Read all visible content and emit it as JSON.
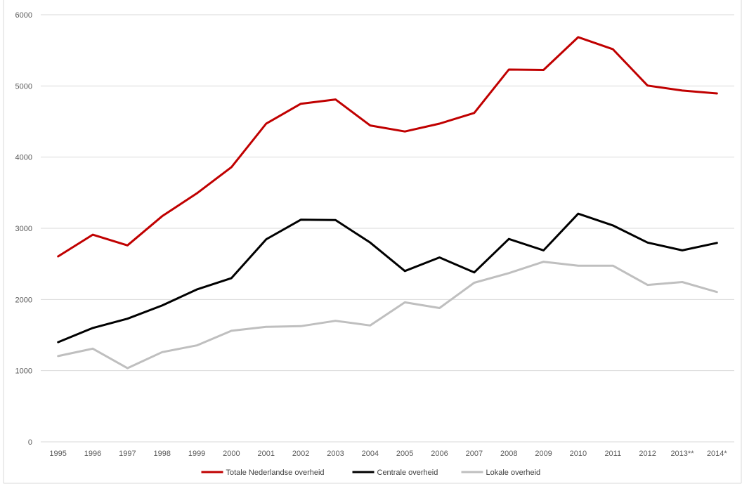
{
  "chart_data": {
    "type": "line",
    "title": "",
    "xlabel": "",
    "ylabel": "",
    "categories": [
      "1995",
      "1996",
      "1997",
      "1998",
      "1999",
      "2000",
      "2001",
      "2002",
      "2003",
      "2004",
      "2005",
      "2006",
      "2007",
      "2008",
      "2009",
      "2010",
      "2011",
      "2012",
      "2013**",
      "2014*"
    ],
    "ylim": [
      0,
      6000
    ],
    "yticks": [
      0,
      1000,
      2000,
      3000,
      4000,
      5000,
      6000
    ],
    "grid": "horizontal",
    "legend_position": "bottom",
    "series": [
      {
        "name": "Totale Nederlandse overheid",
        "color": "#c00000",
        "values": [
          2605,
          2910,
          2760,
          3170,
          3490,
          3860,
          4470,
          4750,
          4810,
          4445,
          4360,
          4470,
          4620,
          5230,
          5225,
          5685,
          5515,
          5005,
          4935,
          4895
        ]
      },
      {
        "name": "Centrale overheid",
        "color": "#000000",
        "values": [
          1400,
          1600,
          1730,
          1915,
          2140,
          2300,
          2845,
          3120,
          3115,
          2800,
          2400,
          2590,
          2380,
          2850,
          2690,
          3205,
          3040,
          2800,
          2690,
          2795
        ]
      },
      {
        "name": "Lokale overheid",
        "color": "#bfbfbf",
        "values": [
          1205,
          1310,
          1035,
          1260,
          1355,
          1560,
          1615,
          1625,
          1700,
          1635,
          1960,
          1880,
          2235,
          2370,
          2530,
          2475,
          2475,
          2205,
          2245,
          2105
        ]
      }
    ]
  }
}
